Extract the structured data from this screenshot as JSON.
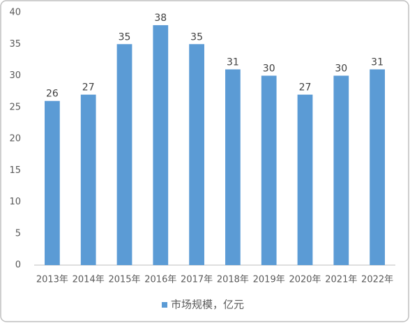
{
  "chart_data": {
    "type": "bar",
    "categories": [
      "2013年",
      "2014年",
      "2015年",
      "2016年",
      "2017年",
      "2018年",
      "2019年",
      "2020年",
      "2021年",
      "2022年"
    ],
    "series": [
      {
        "name": "市场规模，亿元",
        "color": "#5b9bd5",
        "values": [
          26,
          27,
          35,
          38,
          35,
          31,
          30,
          27,
          30,
          31
        ]
      }
    ],
    "ylim": [
      0,
      40
    ],
    "yticks": [
      0,
      5,
      10,
      15,
      20,
      25,
      30,
      35,
      40
    ],
    "grid": false,
    "legend": "bottom"
  }
}
